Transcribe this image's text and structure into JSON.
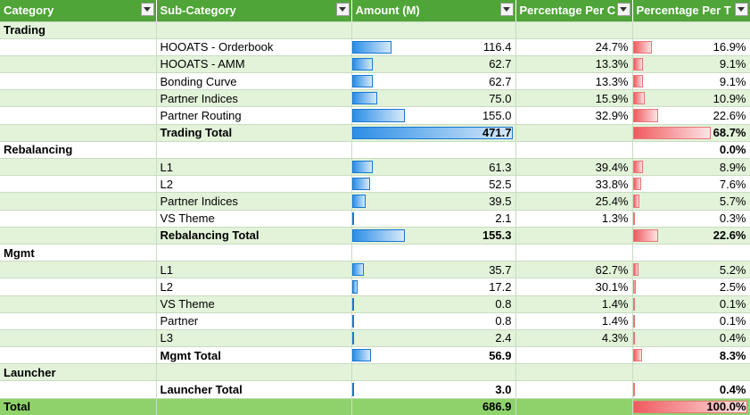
{
  "columns": [
    {
      "label": "Category"
    },
    {
      "label": "Sub-Category"
    },
    {
      "label": "Amount (M)"
    },
    {
      "label": "Percentage Per C"
    },
    {
      "label": "Percentage Per T"
    }
  ],
  "max_amount": 471.7,
  "rows": [
    {
      "kind": "group",
      "category": "Trading",
      "sub": "",
      "amount": "",
      "amount_val": null,
      "pct_c": "",
      "pct_t": "",
      "pct_t_val": null
    },
    {
      "kind": "item",
      "category": "",
      "sub": "HOOATS - Orderbook",
      "amount": "116.4",
      "amount_val": 116.4,
      "pct_c": "24.7%",
      "pct_t": "16.9%",
      "pct_t_val": 16.9
    },
    {
      "kind": "item",
      "category": "",
      "sub": "HOOATS - AMM",
      "amount": "62.7",
      "amount_val": 62.7,
      "pct_c": "13.3%",
      "pct_t": "9.1%",
      "pct_t_val": 9.1
    },
    {
      "kind": "item",
      "category": "",
      "sub": "Bonding Curve",
      "amount": "62.7",
      "amount_val": 62.7,
      "pct_c": "13.3%",
      "pct_t": "9.1%",
      "pct_t_val": 9.1
    },
    {
      "kind": "item",
      "category": "",
      "sub": "Partner Indices",
      "amount": "75.0",
      "amount_val": 75.0,
      "pct_c": "15.9%",
      "pct_t": "10.9%",
      "pct_t_val": 10.9
    },
    {
      "kind": "item",
      "category": "",
      "sub": "Partner Routing",
      "amount": "155.0",
      "amount_val": 155.0,
      "pct_c": "32.9%",
      "pct_t": "22.6%",
      "pct_t_val": 22.6
    },
    {
      "kind": "subtotal",
      "category": "",
      "sub": "Trading Total",
      "amount": "471.7",
      "amount_val": 471.7,
      "pct_c": "",
      "pct_t": "68.7%",
      "pct_t_val": 68.7
    },
    {
      "kind": "group",
      "category": "Rebalancing",
      "sub": "",
      "amount": "",
      "amount_val": null,
      "pct_c": "",
      "pct_t": "0.0%",
      "pct_t_val": 0
    },
    {
      "kind": "item",
      "category": "",
      "sub": "L1",
      "amount": "61.3",
      "amount_val": 61.3,
      "pct_c": "39.4%",
      "pct_t": "8.9%",
      "pct_t_val": 8.9
    },
    {
      "kind": "item",
      "category": "",
      "sub": "L2",
      "amount": "52.5",
      "amount_val": 52.5,
      "pct_c": "33.8%",
      "pct_t": "7.6%",
      "pct_t_val": 7.6
    },
    {
      "kind": "item",
      "category": "",
      "sub": "Partner Indices",
      "amount": "39.5",
      "amount_val": 39.5,
      "pct_c": "25.4%",
      "pct_t": "5.7%",
      "pct_t_val": 5.7
    },
    {
      "kind": "item",
      "category": "",
      "sub": "VS Theme",
      "amount": "2.1",
      "amount_val": 2.1,
      "pct_c": "1.3%",
      "pct_t": "0.3%",
      "pct_t_val": 0.3
    },
    {
      "kind": "subtotal",
      "category": "",
      "sub": "Rebalancing Total",
      "amount": "155.3",
      "amount_val": 155.3,
      "pct_c": "",
      "pct_t": "22.6%",
      "pct_t_val": 22.6
    },
    {
      "kind": "group",
      "category": "Mgmt",
      "sub": "",
      "amount": "",
      "amount_val": null,
      "pct_c": "",
      "pct_t": "",
      "pct_t_val": null
    },
    {
      "kind": "item",
      "category": "",
      "sub": "L1",
      "amount": "35.7",
      "amount_val": 35.7,
      "pct_c": "62.7%",
      "pct_t": "5.2%",
      "pct_t_val": 5.2
    },
    {
      "kind": "item",
      "category": "",
      "sub": "L2",
      "amount": "17.2",
      "amount_val": 17.2,
      "pct_c": "30.1%",
      "pct_t": "2.5%",
      "pct_t_val": 2.5
    },
    {
      "kind": "item",
      "category": "",
      "sub": "VS Theme",
      "amount": "0.8",
      "amount_val": 0.8,
      "pct_c": "1.4%",
      "pct_t": "0.1%",
      "pct_t_val": 0.1
    },
    {
      "kind": "item",
      "category": "",
      "sub": "Partner",
      "amount": "0.8",
      "amount_val": 0.8,
      "pct_c": "1.4%",
      "pct_t": "0.1%",
      "pct_t_val": 0.1
    },
    {
      "kind": "item",
      "category": "",
      "sub": "L3",
      "amount": "2.4",
      "amount_val": 2.4,
      "pct_c": "4.3%",
      "pct_t": "0.4%",
      "pct_t_val": 0.4
    },
    {
      "kind": "subtotal",
      "category": "",
      "sub": "Mgmt Total",
      "amount": "56.9",
      "amount_val": 56.9,
      "pct_c": "",
      "pct_t": "8.3%",
      "pct_t_val": 8.3
    },
    {
      "kind": "group",
      "category": "Launcher",
      "sub": "",
      "amount": "",
      "amount_val": null,
      "pct_c": "",
      "pct_t": "",
      "pct_t_val": null
    },
    {
      "kind": "subtotal",
      "category": "",
      "sub": "Launcher Total",
      "amount": "3.0",
      "amount_val": 3.0,
      "pct_c": "",
      "pct_t": "0.4%",
      "pct_t_val": 0.4
    },
    {
      "kind": "grand",
      "category": "Total",
      "sub": "",
      "amount": "686.9",
      "amount_val": null,
      "pct_c": "",
      "pct_t": "100.0%",
      "pct_t_val": 100
    }
  ],
  "colors": {
    "header_green": "#4fa537",
    "band_light": "#e2f3d9",
    "total_green": "#8fd26c",
    "bar_blue": "#2b8ee6",
    "bar_red": "#ef5a5e"
  },
  "icons": {
    "filter": "filter-dropdown-icon"
  }
}
